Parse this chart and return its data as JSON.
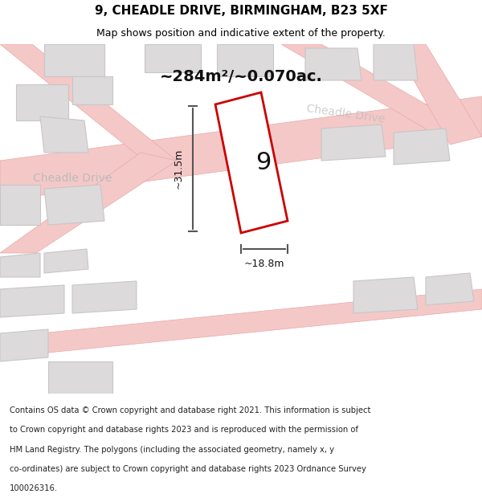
{
  "title": "9, CHEADLE DRIVE, BIRMINGHAM, B23 5XF",
  "subtitle": "Map shows position and indicative extent of the property.",
  "area_label": "~284m²/~0.070ac.",
  "width_label": "~18.8m",
  "height_label": "~31.5m",
  "number_label": "9",
  "footer_text": "Contains OS data © Crown copyright and database right 2021. This information is subject to Crown copyright and database rights 2023 and is reproduced with the permission of HM Land Registry. The polygons (including the associated geometry, namely x, y co-ordinates) are subject to Crown copyright and database rights 2023 Ordnance Survey 100026316.",
  "bg_color": "#f0eeee",
  "map_bg_color": "#f5f3f3",
  "road_color": "#f5c8c8",
  "road_stroke": "#e8a8a8",
  "building_color": "#dcdada",
  "building_stroke": "#c8c6c6",
  "plot_color": "#ffffff",
  "plot_stroke": "#cc0000",
  "dim_color": "#555555",
  "street_label_color": "#bbbbbb",
  "title_color": "#000000",
  "footer_color": "#222222"
}
